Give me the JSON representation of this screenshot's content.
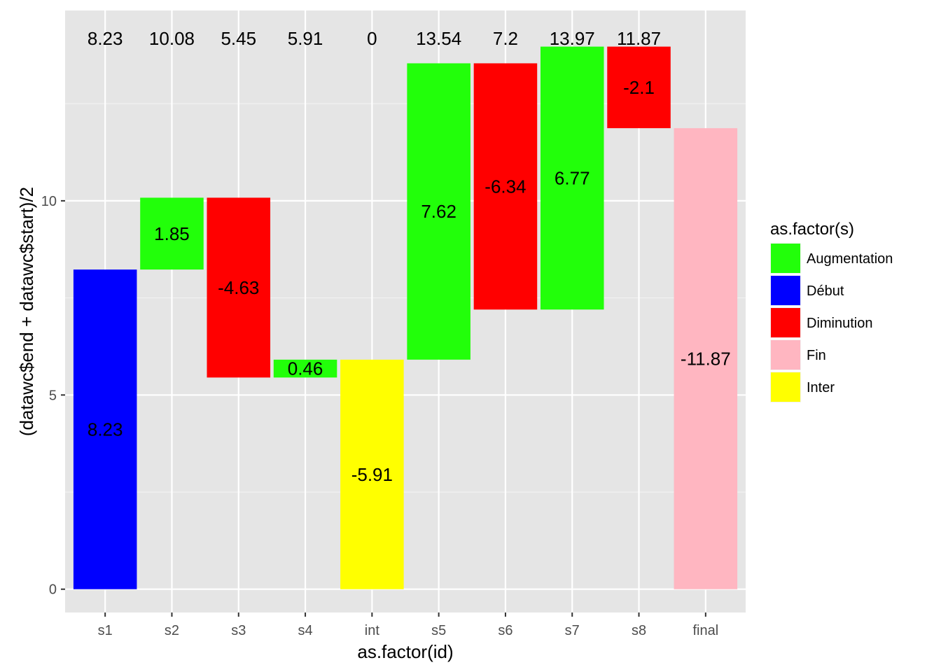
{
  "chart_data": {
    "type": "bar",
    "subtype": "waterfall",
    "title": "",
    "xlabel": "as.factor(id)",
    "ylabel": "(datawc$end + datawc$start)/2",
    "ylim": [
      -0.6,
      14.9
    ],
    "y_ticks": [
      0,
      5,
      10
    ],
    "grid": true,
    "categories": [
      "s1",
      "s2",
      "s3",
      "s4",
      "int",
      "s5",
      "s6",
      "s7",
      "s8",
      "final"
    ],
    "bars": [
      {
        "id": "s1",
        "start": 0,
        "end": 8.23,
        "amount": "8.23",
        "cumulative": "8.23",
        "type": "Début"
      },
      {
        "id": "s2",
        "start": 8.23,
        "end": 10.08,
        "amount": "1.85",
        "cumulative": "10.08",
        "type": "Augmentation"
      },
      {
        "id": "s3",
        "start": 10.08,
        "end": 5.45,
        "amount": "-4.63",
        "cumulative": "5.45",
        "type": "Diminution"
      },
      {
        "id": "s4",
        "start": 5.45,
        "end": 5.91,
        "amount": "0.46",
        "cumulative": "5.91",
        "type": "Augmentation"
      },
      {
        "id": "int",
        "start": 5.91,
        "end": 0,
        "amount": "-5.91",
        "cumulative": "0",
        "type": "Inter"
      },
      {
        "id": "s5",
        "start": 5.91,
        "end": 13.54,
        "amount": "7.62",
        "cumulative": "13.54",
        "type": "Augmentation"
      },
      {
        "id": "s6",
        "start": 13.54,
        "end": 7.2,
        "amount": "-6.34",
        "cumulative": "7.2",
        "type": "Diminution"
      },
      {
        "id": "s7",
        "start": 7.2,
        "end": 13.97,
        "amount": "6.77",
        "cumulative": "13.97",
        "type": "Augmentation"
      },
      {
        "id": "s8",
        "start": 13.97,
        "end": 11.87,
        "amount": "-2.1",
        "cumulative": "11.87",
        "type": "Diminution"
      },
      {
        "id": "final",
        "start": 11.87,
        "end": 0,
        "amount": "-11.87",
        "cumulative": "",
        "type": "Fin"
      }
    ],
    "legend": {
      "title": "as.factor(s)",
      "placement": "right",
      "items": [
        {
          "label": "Augmentation",
          "color": "#22ff0a"
        },
        {
          "label": "Début",
          "color": "#0000ff"
        },
        {
          "label": "Diminution",
          "color": "#ff0000"
        },
        {
          "label": "Fin",
          "color": "#ffb6c1"
        },
        {
          "label": "Inter",
          "color": "#ffff00"
        }
      ]
    },
    "colors": {
      "panel_background": "#e5e5e5",
      "grid_major": "#ffffff",
      "grid_minor": "#f2f2f2"
    }
  }
}
